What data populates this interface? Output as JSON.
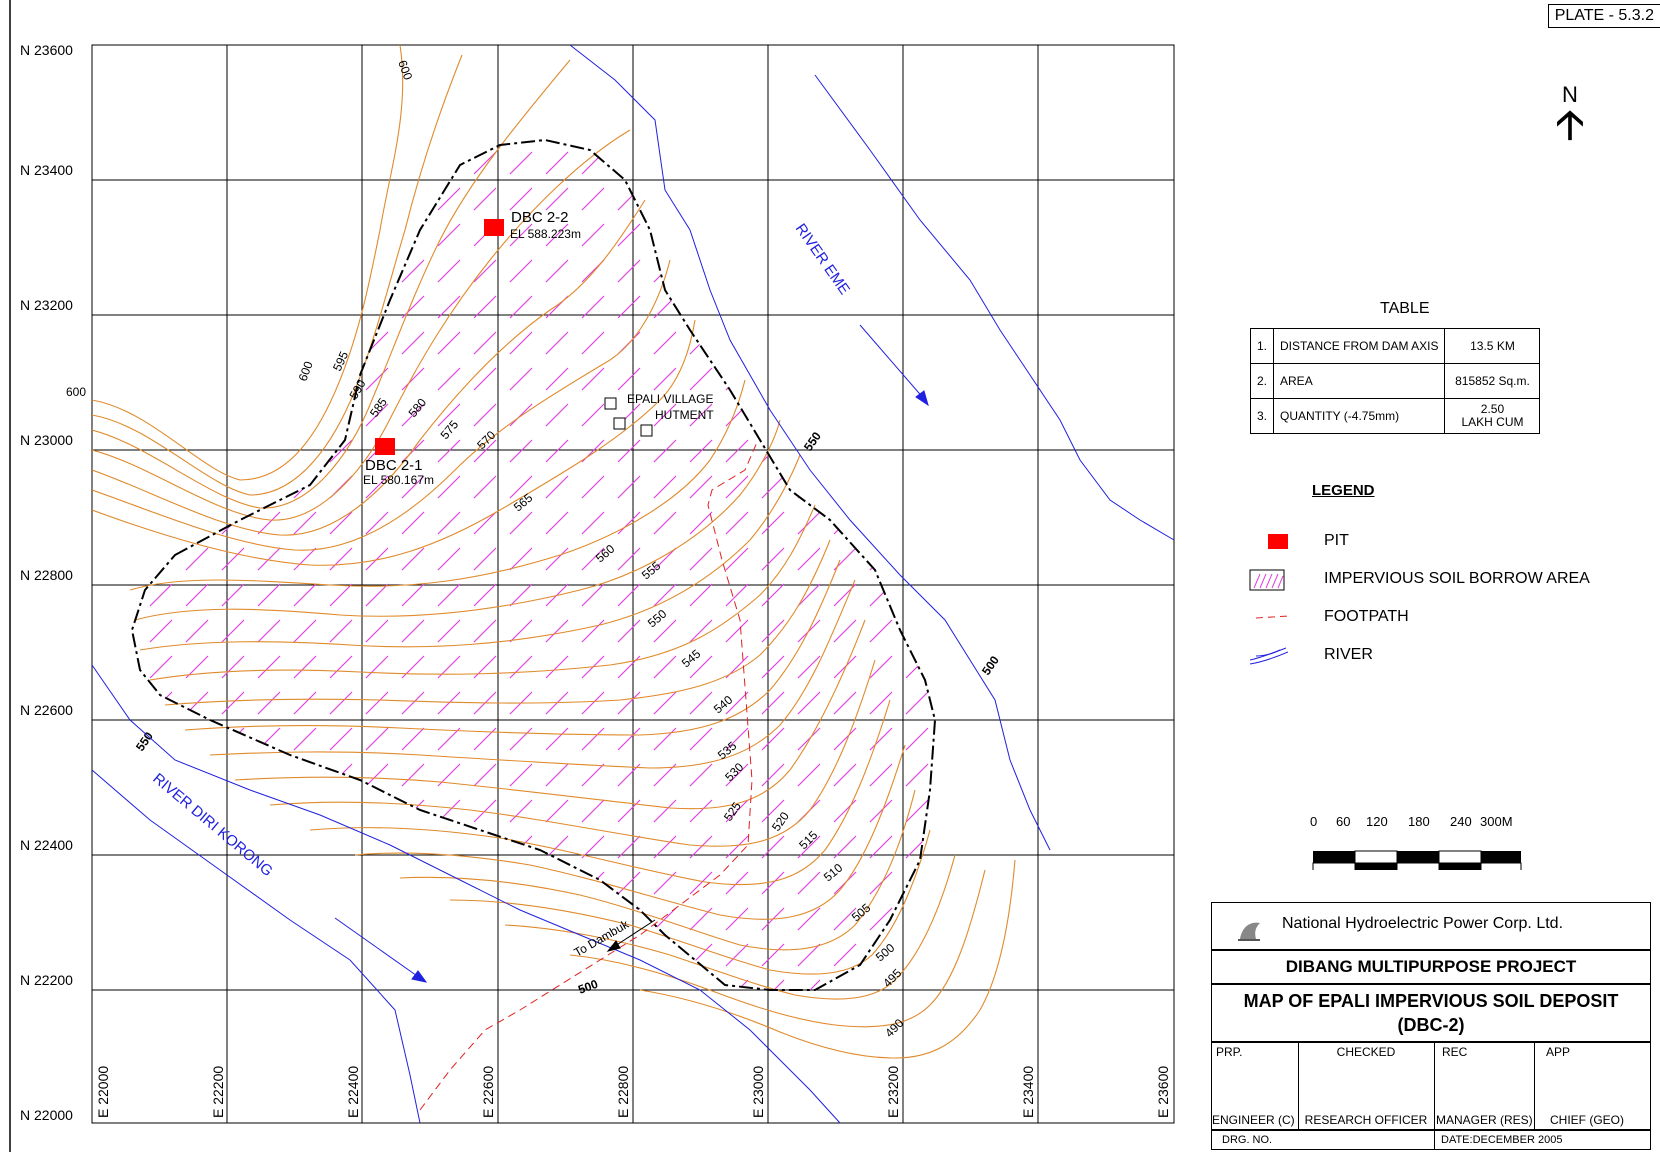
{
  "plate": "PLATE - 5.3.2",
  "north_label": "N",
  "grid": {
    "northings": [
      "N 23600",
      "N 23400",
      "N 23200",
      "N 23000",
      "N 22800",
      "N 22600",
      "N 22400",
      "N 22200",
      "N 22000"
    ],
    "eastings": [
      "E 22000",
      "E 22200",
      "E 22400",
      "E 22600",
      "E 22800",
      "E 23000",
      "E 23200",
      "E 23400",
      "E 23600"
    ]
  },
  "contour_labels": [
    "600",
    "600",
    "600",
    "595",
    "590",
    "585",
    "580",
    "575",
    "570",
    "565",
    "560",
    "555",
    "550",
    "545",
    "540",
    "535",
    "530",
    "525",
    "520",
    "515",
    "510",
    "505",
    "500",
    "495",
    "490",
    "550",
    "550",
    "500",
    "500"
  ],
  "rivers": {
    "eme": "RIVER EME",
    "diri": "RIVER DIRI KORONG"
  },
  "pits": [
    {
      "name": "DBC 2-2",
      "elevation": "EL 588.223m"
    },
    {
      "name": "DBC 2-1",
      "elevation": "EL 580.167m"
    }
  ],
  "village": {
    "line1": "EPALI VILLAGE",
    "line2": "HUTMENT"
  },
  "footpath_label": "To Dambuk",
  "table": {
    "title": "TABLE",
    "rows": [
      {
        "no": "1.",
        "item": "DISTANCE FROM DAM AXIS",
        "value": "13.5 KM",
        "value2": ""
      },
      {
        "no": "2.",
        "item": "AREA",
        "value": "815852 Sq.m.",
        "value2": ""
      },
      {
        "no": "3.",
        "item": "QUANTITY (-4.75mm)",
        "value": "2.50",
        "value2": "LAKH CUM"
      }
    ]
  },
  "legend": {
    "title": "LEGEND",
    "items": [
      {
        "symbol": "pit-symbol",
        "label": "PIT"
      },
      {
        "symbol": "hatch-symbol",
        "label": "IMPERVIOUS SOIL BORROW AREA"
      },
      {
        "symbol": "footpath-symbol",
        "label": "FOOTPATH"
      },
      {
        "symbol": "river-symbol",
        "label": "RIVER"
      }
    ]
  },
  "scale": {
    "ticks": [
      "0",
      "60",
      "120",
      "180",
      "240",
      "300M"
    ]
  },
  "title_block": {
    "org": "National Hydroelectric Power Corp. Ltd.",
    "project": "DIBANG MULTIPURPOSE PROJECT",
    "map_title_1": "MAP OF EPALI IMPERVIOUS SOIL DEPOSIT",
    "map_title_2": "(DBC-2)",
    "sign_heads": [
      "PRP.",
      "CHECKED",
      "REC",
      "APP"
    ],
    "sign_roles": [
      "ENGINEER (C)",
      "RESEARCH OFFICER",
      "MANAGER (RES)",
      "CHIEF (GEO)"
    ],
    "drg_no": "DRG. NO.",
    "date": "DATE:DECEMBER 2005"
  },
  "colors": {
    "contour": "#e08a2c",
    "river": "#2020e0",
    "hatch": "#e040e0",
    "pit": "#ff0000",
    "footpath": "#e02020",
    "boundary": "#000000"
  }
}
